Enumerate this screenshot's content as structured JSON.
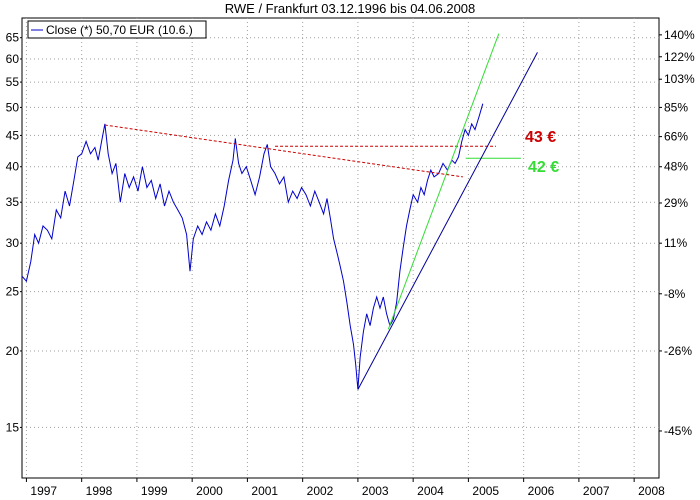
{
  "chart_data": {
    "type": "line",
    "title": "RWE / Frankfurt 03.12.1996 bis 04.06.2008",
    "legend": {
      "label": "Close (*) 50,70 EUR (10.6.)",
      "position": "top-left",
      "color": "#0000cc"
    },
    "xlabel": "",
    "ylabel": "",
    "y_scale": "log",
    "grid": true,
    "xlim": [
      1996.92,
      2008.45
    ],
    "ylim": [
      12.4,
      70
    ],
    "x_ticks": [
      {
        "value": 1997,
        "label": "1997"
      },
      {
        "value": 1998,
        "label": "1998"
      },
      {
        "value": 1999,
        "label": "1999"
      },
      {
        "value": 2000,
        "label": "2000"
      },
      {
        "value": 2001,
        "label": "2001"
      },
      {
        "value": 2002,
        "label": "2002"
      },
      {
        "value": 2003,
        "label": "2003"
      },
      {
        "value": 2004,
        "label": "2004"
      },
      {
        "value": 2005,
        "label": "2005"
      },
      {
        "value": 2006,
        "label": "2006"
      },
      {
        "value": 2007,
        "label": "2007"
      },
      {
        "value": 2008,
        "label": "2008"
      }
    ],
    "y_ticks_left": [
      {
        "value": 15,
        "label": "15"
      },
      {
        "value": 20,
        "label": "20"
      },
      {
        "value": 25,
        "label": "25"
      },
      {
        "value": 30,
        "label": "30"
      },
      {
        "value": 35,
        "label": "35"
      },
      {
        "value": 40,
        "label": "40"
      },
      {
        "value": 45,
        "label": "45"
      },
      {
        "value": 50,
        "label": "50"
      },
      {
        "value": 55,
        "label": "55"
      },
      {
        "value": 60,
        "label": "60"
      },
      {
        "value": 65,
        "label": "65"
      }
    ],
    "y_ticks_right": [
      {
        "value": 14.8,
        "label": "-45%"
      },
      {
        "value": 20.0,
        "label": "-26%"
      },
      {
        "value": 24.8,
        "label": "-8%"
      },
      {
        "value": 30.0,
        "label": "11%"
      },
      {
        "value": 34.9,
        "label": "29%"
      },
      {
        "value": 40.0,
        "label": "48%"
      },
      {
        "value": 44.8,
        "label": "66%"
      },
      {
        "value": 50.0,
        "label": "85%"
      },
      {
        "value": 55.6,
        "label": "103%"
      },
      {
        "value": 60.5,
        "label": "122%"
      },
      {
        "value": 65.7,
        "label": "140%"
      }
    ],
    "series": [
      {
        "color": "#0000cc",
        "points": [
          [
            1996.92,
            26.5
          ],
          [
            1997.0,
            26.0
          ],
          [
            1997.08,
            28.0
          ],
          [
            1997.15,
            31.0
          ],
          [
            1997.22,
            30.0
          ],
          [
            1997.3,
            32.0
          ],
          [
            1997.38,
            31.5
          ],
          [
            1997.46,
            30.5
          ],
          [
            1997.54,
            34.0
          ],
          [
            1997.62,
            33.0
          ],
          [
            1997.7,
            36.5
          ],
          [
            1997.78,
            34.5
          ],
          [
            1997.86,
            38.0
          ],
          [
            1997.93,
            41.5
          ],
          [
            1998.0,
            42.0
          ],
          [
            1998.08,
            44.0
          ],
          [
            1998.16,
            42.0
          ],
          [
            1998.24,
            43.0
          ],
          [
            1998.3,
            41.0
          ],
          [
            1998.36,
            44.0
          ],
          [
            1998.42,
            47.0
          ],
          [
            1998.48,
            42.0
          ],
          [
            1998.55,
            39.0
          ],
          [
            1998.62,
            40.5
          ],
          [
            1998.7,
            35.0
          ],
          [
            1998.78,
            39.0
          ],
          [
            1998.86,
            37.0
          ],
          [
            1998.94,
            38.5
          ],
          [
            1999.02,
            36.5
          ],
          [
            1999.1,
            40.0
          ],
          [
            1999.18,
            37.0
          ],
          [
            1999.26,
            38.0
          ],
          [
            1999.34,
            35.5
          ],
          [
            1999.42,
            37.5
          ],
          [
            1999.5,
            34.5
          ],
          [
            1999.58,
            36.5
          ],
          [
            1999.66,
            35.0
          ],
          [
            1999.74,
            34.0
          ],
          [
            1999.82,
            33.0
          ],
          [
            1999.9,
            31.0
          ],
          [
            1999.96,
            27.0
          ],
          [
            2000.02,
            30.5
          ],
          [
            2000.1,
            32.0
          ],
          [
            2000.18,
            31.0
          ],
          [
            2000.26,
            32.5
          ],
          [
            2000.34,
            31.5
          ],
          [
            2000.42,
            33.5
          ],
          [
            2000.5,
            32.0
          ],
          [
            2000.58,
            34.5
          ],
          [
            2000.66,
            38.0
          ],
          [
            2000.74,
            41.0
          ],
          [
            2000.78,
            44.5
          ],
          [
            2000.84,
            40.5
          ],
          [
            2000.9,
            39.0
          ],
          [
            2000.98,
            40.0
          ],
          [
            2001.06,
            38.0
          ],
          [
            2001.14,
            36.0
          ],
          [
            2001.22,
            38.5
          ],
          [
            2001.3,
            42.0
          ],
          [
            2001.36,
            43.5
          ],
          [
            2001.42,
            40.0
          ],
          [
            2001.5,
            39.0
          ],
          [
            2001.58,
            37.5
          ],
          [
            2001.66,
            38.5
          ],
          [
            2001.74,
            35.0
          ],
          [
            2001.82,
            36.5
          ],
          [
            2001.9,
            35.5
          ],
          [
            2001.98,
            37.0
          ],
          [
            2002.06,
            36.0
          ],
          [
            2002.14,
            34.5
          ],
          [
            2002.22,
            36.5
          ],
          [
            2002.3,
            35.0
          ],
          [
            2002.38,
            33.5
          ],
          [
            2002.44,
            35.5
          ],
          [
            2002.5,
            33.0
          ],
          [
            2002.56,
            30.5
          ],
          [
            2002.62,
            29.0
          ],
          [
            2002.68,
            27.5
          ],
          [
            2002.74,
            26.0
          ],
          [
            2002.8,
            24.0
          ],
          [
            2002.86,
            22.0
          ],
          [
            2002.92,
            20.5
          ],
          [
            2002.96,
            19.0
          ],
          [
            2003.0,
            17.3
          ],
          [
            2003.04,
            19.5
          ],
          [
            2003.1,
            21.5
          ],
          [
            2003.16,
            23.0
          ],
          [
            2003.22,
            22.0
          ],
          [
            2003.28,
            23.5
          ],
          [
            2003.34,
            24.5
          ],
          [
            2003.4,
            23.5
          ],
          [
            2003.46,
            24.5
          ],
          [
            2003.52,
            23.0
          ],
          [
            2003.58,
            22.0
          ],
          [
            2003.64,
            22.5
          ],
          [
            2003.7,
            24.0
          ],
          [
            2003.76,
            27.0
          ],
          [
            2003.82,
            29.5
          ],
          [
            2003.88,
            32.0
          ],
          [
            2003.94,
            34.0
          ],
          [
            2004.0,
            36.0
          ],
          [
            2004.08,
            35.0
          ],
          [
            2004.14,
            37.0
          ],
          [
            2004.2,
            36.0
          ],
          [
            2004.26,
            38.0
          ],
          [
            2004.32,
            39.5
          ],
          [
            2004.38,
            38.5
          ],
          [
            2004.46,
            39.0
          ],
          [
            2004.54,
            40.5
          ],
          [
            2004.62,
            39.5
          ],
          [
            2004.7,
            41.0
          ],
          [
            2004.76,
            40.5
          ],
          [
            2004.82,
            41.5
          ],
          [
            2004.88,
            44.0
          ],
          [
            2004.94,
            46.0
          ],
          [
            2005.0,
            45.0
          ],
          [
            2005.06,
            47.0
          ],
          [
            2005.12,
            46.0
          ],
          [
            2005.2,
            48.5
          ],
          [
            2005.26,
            50.7
          ]
        ]
      }
    ],
    "annotations": [
      {
        "text": "43 €",
        "value": 43,
        "color": "#cc0000"
      },
      {
        "text": "42 €",
        "value": 42,
        "color": "#33dd33"
      }
    ],
    "trendlines": [
      {
        "name": "resistance",
        "color": "#cc0000",
        "style": "dashed",
        "points": [
          [
            1998.42,
            46.8
          ],
          [
            2004.9,
            38.5
          ]
        ]
      },
      {
        "name": "level-43",
        "color": "#cc0000",
        "style": "dashed",
        "points": [
          [
            2001.5,
            43.2
          ],
          [
            2005.5,
            43.2
          ]
        ]
      },
      {
        "name": "level-42",
        "color": "#33dd33",
        "style": "solid",
        "points": [
          [
            2004.95,
            41.3
          ],
          [
            2005.95,
            41.3
          ]
        ]
      },
      {
        "name": "uptrend-green",
        "color": "#33dd33",
        "style": "solid",
        "points": [
          [
            2003.55,
            21.7
          ],
          [
            2005.55,
            66.0
          ]
        ]
      },
      {
        "name": "uptrend-blue",
        "color": "#000099",
        "style": "solid",
        "points": [
          [
            2003.0,
            17.3
          ],
          [
            2006.25,
            61.5
          ]
        ]
      }
    ]
  }
}
